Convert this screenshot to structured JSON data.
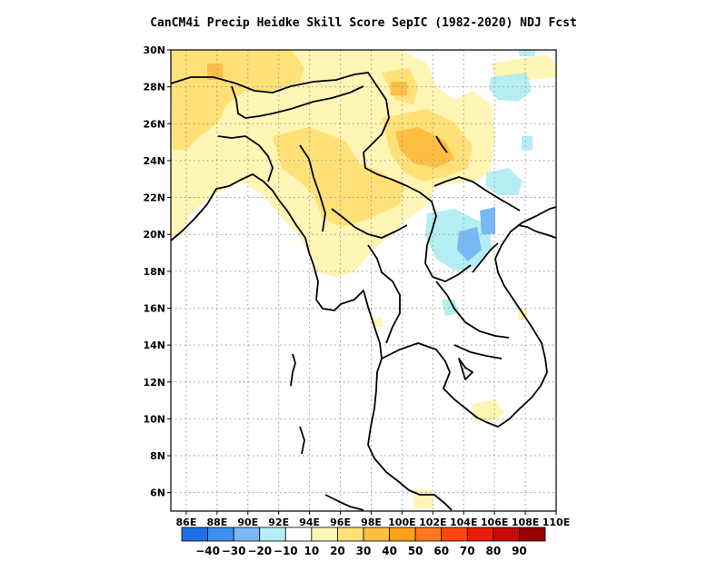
{
  "title": "CanCM4i Precip Heidke Skill Score SepIC (1982-2020) NDJ Fcst",
  "map": {
    "lat_labels": [
      "30N",
      "28N",
      "26N",
      "24N",
      "22N",
      "20N",
      "18N",
      "16N",
      "14N",
      "12N",
      "10N",
      "8N",
      "6N"
    ],
    "lon_labels": [
      "86E",
      "88E",
      "90E",
      "92E",
      "94E",
      "96E",
      "98E",
      "100E",
      "102E",
      "104E",
      "106E",
      "108E",
      "110E"
    ],
    "lon_range": [
      85,
      110
    ],
    "lat_range": [
      5,
      30
    ],
    "grid_style": "dotted"
  },
  "colorbar": {
    "colors": [
      "#1e6fe6",
      "#3c8ff0",
      "#78b9f5",
      "#b4eef3",
      "#ffffff",
      "#fff5b4",
      "#ffe178",
      "#ffbe41",
      "#ffa019",
      "#ff781e",
      "#ff460f",
      "#e61e0a",
      "#c80a0a",
      "#960000"
    ],
    "labels": [
      "-40",
      "-30",
      "-20",
      "-10",
      "10",
      "20",
      "30",
      "40",
      "50",
      "60",
      "70",
      "80",
      "90"
    ]
  }
}
